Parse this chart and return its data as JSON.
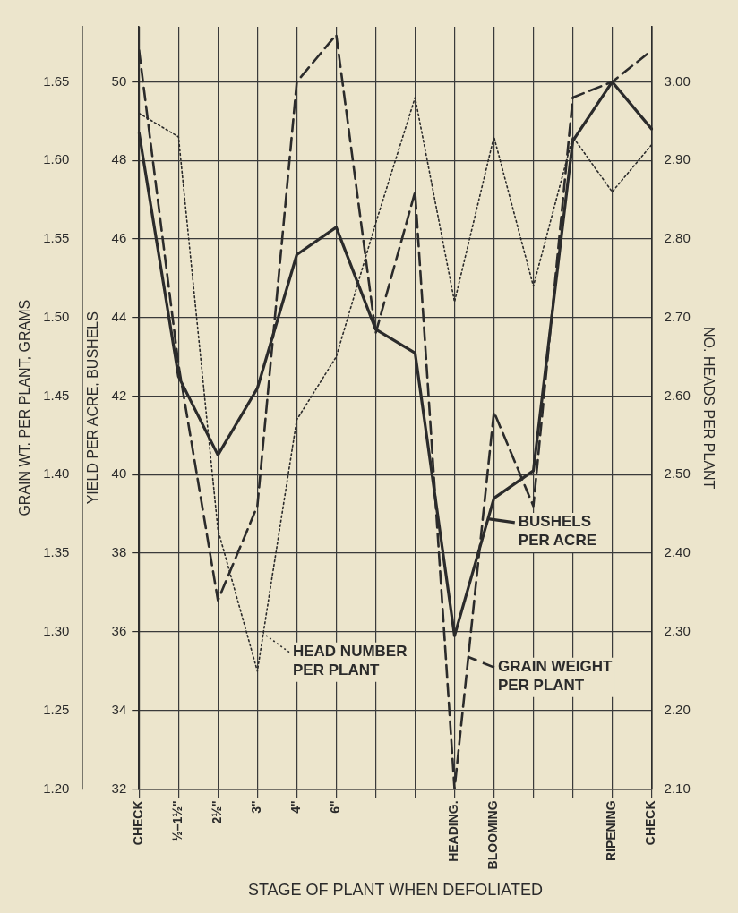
{
  "chart_data": {
    "type": "line",
    "xlabel": "STAGE OF PLANT WHEN DEFOLIATED",
    "ylabel": "YIELD PER ACRE, BUSHELS",
    "y2label": "GRAIN WT. PER PLANT, GRAMS",
    "y3label": "NO. HEADS PER PLANT",
    "categories": [
      "CHECK",
      "½–1½\"",
      "2½\"",
      "3\"",
      "4\"",
      "6\"",
      null,
      null,
      "HEADING.",
      "BLOOMING",
      null,
      null,
      "RIPENING",
      "CHECK"
    ],
    "ylim": [
      32,
      51.4
    ],
    "yticks": [
      32,
      34,
      36,
      38,
      40,
      42,
      44,
      46,
      48,
      50
    ],
    "y2lim": [
      1.2,
      1.685
    ],
    "y2ticks": [
      {
        "value": 1.2,
        "label": "1.20"
      },
      1.25,
      {
        "value": 1.3,
        "label": "1.30"
      },
      1.35,
      {
        "value": 1.4,
        "label": "1.40"
      },
      1.45,
      {
        "value": 1.5,
        "label": "1.50"
      },
      1.55,
      {
        "value": 1.6,
        "label": "1.60"
      },
      1.65
    ],
    "y3lim": [
      2.1,
      3.07
    ],
    "y3ticks": [
      {
        "value": 2.1,
        "label": "2.10"
      },
      {
        "value": 2.2,
        "label": "2.20"
      },
      {
        "value": 2.3,
        "label": "2.30"
      },
      {
        "value": 2.4,
        "label": "2.40"
      },
      {
        "value": 2.5,
        "label": "2.50"
      },
      {
        "value": 2.6,
        "label": "2.60"
      },
      {
        "value": 2.7,
        "label": "2.70"
      },
      {
        "value": 2.8,
        "label": "2.80"
      },
      {
        "value": 2.9,
        "label": "2.90"
      },
      {
        "value": 3,
        "label": "3.00"
      }
    ],
    "grid": true,
    "legend": "bottom",
    "series": [
      {
        "name": "BUSHELS PER ACRE",
        "color": "#2b2b2b",
        "line_style": "solid",
        "values": [
          48.7,
          42.5,
          40.5,
          42.2,
          45.6,
          46.3,
          43.7,
          43.1,
          35.9,
          39.4,
          40.1,
          48.5,
          50.0,
          48.8
        ]
      },
      {
        "name": "GRAIN WEIGHT PER PLANT",
        "color": "#2b2b2b",
        "line_style": "dashed",
        "axis": "y2",
        "values": [
          1.67,
          1.47,
          1.32,
          1.38,
          1.65,
          1.68,
          1.49,
          1.58,
          1.2,
          1.44,
          1.38,
          1.64,
          1.65,
          1.67
        ]
      },
      {
        "name": "HEAD NUMBER PER PLANT",
        "color": "#2b2b2b",
        "line_style": "dotted",
        "axis": "y3",
        "values": [
          2.96,
          2.93,
          2.43,
          2.25,
          2.57,
          2.65,
          2.82,
          2.98,
          2.72,
          2.93,
          2.74,
          2.93,
          2.86,
          2.92
        ]
      }
    ]
  }
}
